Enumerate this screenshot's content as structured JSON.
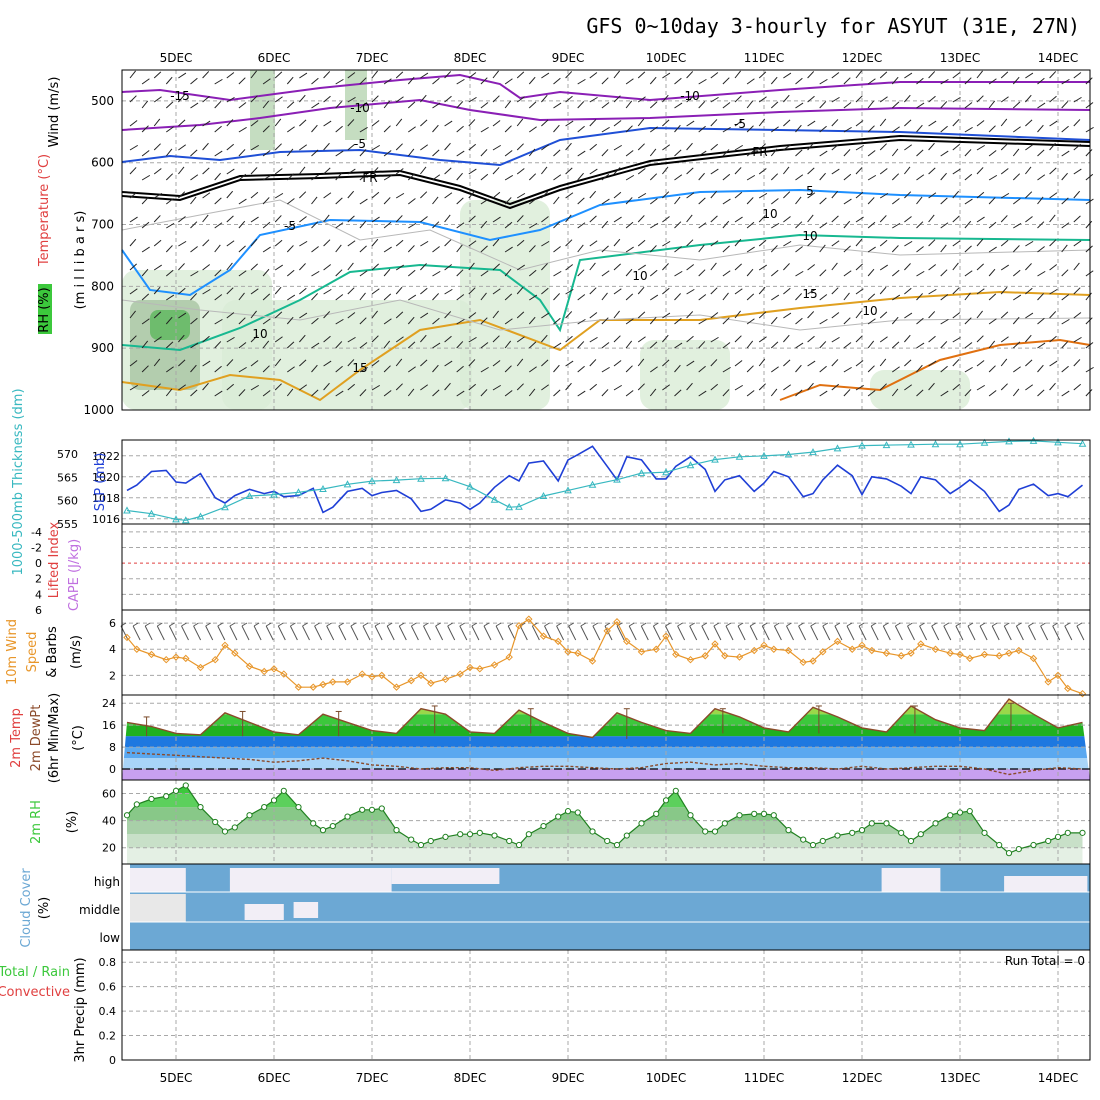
{
  "title": "GFS 0~10day 3-hourly for ASYUT (31E, 27N)",
  "days": [
    "5DEC",
    "6DEC",
    "7DEC",
    "8DEC",
    "9DEC",
    "10DEC",
    "11DEC",
    "12DEC",
    "13DEC",
    "14DEC"
  ],
  "colors": {
    "purple": "#8a1fb5",
    "blue": "#1f4fd6",
    "lightblue": "#1e90ff",
    "teal": "#17b890",
    "orange": "#e0a020",
    "darkorange": "#e07010",
    "slp": "#1f3fd6",
    "thick": "#38b8c0",
    "wind": "#e8962a",
    "rh_green": "#3cc83c",
    "cloud": "#6ca8d4"
  },
  "panels": {
    "upper": {
      "ylabel_wind": "Wind (m/s)",
      "ylabel_temp": "Temperature (°C)",
      "ylabel_rh": "RH (%)",
      "ylabel_unit": "(m i l l i b a r s)",
      "pressure_levels": [
        500,
        600,
        700,
        800,
        900,
        1000
      ],
      "isotherm_labels": [
        "-15",
        "-10",
        "-10",
        "-5",
        "-5",
        "FR",
        "FR",
        "-5",
        "5",
        "10",
        "10",
        "15",
        "15",
        "10",
        "10",
        "10"
      ]
    },
    "slp": {
      "ylabel_thick": "1000-500mb Thickness (dm)",
      "ylabel_slp": "SLP (mb)",
      "thick_ticks": [
        555,
        560,
        565,
        570
      ],
      "slp_ticks": [
        1016,
        1018,
        1020,
        1022
      ]
    },
    "li": {
      "ylabel_li": "Lifted Index",
      "ylabel_cape": "CAPE (J/kg)",
      "ticks": [
        "-4",
        "-2",
        "0",
        "2",
        "4",
        "6"
      ]
    },
    "wind10": {
      "ylabel_a": "10m Wind",
      "ylabel_b": "Speed",
      "ylabel_c": "& Barbs",
      "ylabel_unit": "(m/s)",
      "ticks": [
        2,
        4,
        6
      ]
    },
    "temp2m": {
      "ylabel_a": "2m Temp",
      "ylabel_b": "2m DewPt",
      "ylabel_c": "(6hr Min/Max)",
      "ylabel_unit": "(°C)",
      "ticks": [
        0,
        8,
        16,
        24
      ]
    },
    "rh2m": {
      "ylabel_a": "2m RH",
      "ylabel_unit": "(%)",
      "ticks": [
        20,
        40,
        60
      ]
    },
    "cloud": {
      "ylabel_a": "Cloud Cover",
      "ylabel_unit": "(%)",
      "levels": [
        "high",
        "middle",
        "low"
      ]
    },
    "precip": {
      "ylabel_a": "Total / Rain",
      "ylabel_b": "Convective",
      "ylabel_c": "3hr Precip (mm)",
      "ticks": [
        "0",
        "0.2",
        "0.4",
        "0.6",
        "0.8"
      ],
      "run_total": "Run Total = 0"
    }
  },
  "chart_data": [
    {
      "type": "line",
      "name": "Sea level pressure",
      "ylabel": "SLP (mb)",
      "ylim": [
        1015.5,
        1023.5
      ],
      "x_days": [
        4.5,
        4.6,
        4.75,
        4.9,
        5.0,
        5.1,
        5.25,
        5.4,
        5.5,
        5.6,
        5.75,
        5.9,
        6.0,
        6.1,
        6.25,
        6.4,
        6.5,
        6.6,
        6.75,
        6.9,
        7.0,
        7.1,
        7.25,
        7.4,
        7.5,
        7.6,
        7.75,
        7.9,
        8.0,
        8.1,
        8.25,
        8.4,
        8.5,
        8.6,
        8.75,
        8.9,
        9.0,
        9.1,
        9.25,
        9.4,
        9.5,
        9.6,
        9.75,
        9.9,
        10.0,
        10.1,
        10.25,
        10.4,
        10.5,
        10.6,
        10.75,
        10.9,
        11.0,
        11.1,
        11.25,
        11.4,
        11.5,
        11.6,
        11.75,
        11.9,
        12.0,
        12.1,
        12.25,
        12.4,
        12.5,
        12.6,
        12.75,
        12.9,
        13.0,
        13.1,
        13.25,
        13.4,
        13.5,
        13.6,
        13.75,
        13.9,
        14.0,
        14.1,
        14.25
      ],
      "values": [
        1018.7,
        1019.2,
        1020.5,
        1020.6,
        1019.5,
        1019.4,
        1020.3,
        1018.0,
        1017.5,
        1018.2,
        1018.8,
        1018.4,
        1018.6,
        1018.1,
        1018.2,
        1018.9,
        1016.6,
        1017.1,
        1018.6,
        1018.9,
        1018.2,
        1018.5,
        1018.7,
        1017.9,
        1016.7,
        1016.9,
        1017.8,
        1017.5,
        1016.9,
        1017.5,
        1019.0,
        1020.1,
        1019.6,
        1021.3,
        1021.5,
        1019.6,
        1021.6,
        1022.1,
        1022.9,
        1021.0,
        1019.7,
        1021.9,
        1021.6,
        1019.8,
        1019.8,
        1021.0,
        1021.9,
        1020.7,
        1018.6,
        1019.7,
        1020.1,
        1018.6,
        1019.4,
        1020.5,
        1020.0,
        1018.1,
        1018.4,
        1019.7,
        1021.1,
        1020.1,
        1018.3,
        1020.0,
        1019.8,
        1019.1,
        1018.4,
        1020.0,
        1019.7,
        1018.4,
        1019.0,
        1019.7,
        1018.6,
        1016.7,
        1017.3,
        1018.8,
        1019.3,
        1018.2,
        1018.4,
        1018.1,
        1019.2
      ]
    },
    {
      "type": "line",
      "name": "1000-500mb Thickness",
      "ylabel": "Thickness (dm)",
      "ylim": [
        555,
        573
      ],
      "x_days": [
        4.5,
        4.75,
        5.0,
        5.1,
        5.25,
        5.5,
        5.75,
        6.0,
        6.25,
        6.5,
        6.75,
        7.0,
        7.25,
        7.5,
        7.75,
        8.0,
        8.25,
        8.4,
        8.5,
        8.75,
        9.0,
        9.25,
        9.5,
        9.75,
        10.0,
        10.25,
        10.5,
        10.75,
        11.0,
        11.25,
        11.5,
        11.75,
        12.0,
        12.25,
        12.5,
        12.75,
        13.0,
        13.25,
        13.5,
        13.75,
        14.0,
        14.25
      ],
      "values": [
        557.9,
        557.2,
        556.0,
        555.8,
        556.6,
        558.6,
        561.0,
        561.3,
        561.8,
        562.5,
        563.5,
        564.2,
        564.4,
        564.7,
        564.8,
        563.0,
        560.2,
        558.6,
        558.7,
        561.0,
        562.2,
        563.4,
        564.5,
        565.9,
        566.1,
        567.6,
        568.8,
        569.4,
        569.6,
        569.9,
        570.4,
        571.2,
        571.8,
        571.9,
        572.0,
        572.1,
        572.1,
        572.4,
        572.7,
        572.8,
        572.5,
        572.2
      ]
    },
    {
      "type": "line",
      "name": "10m wind speed",
      "ylabel": "m/s",
      "ylim": [
        0.5,
        7
      ],
      "x_days": [
        4.5,
        4.6,
        4.75,
        4.9,
        5.0,
        5.1,
        5.25,
        5.4,
        5.5,
        5.6,
        5.75,
        5.9,
        6.0,
        6.1,
        6.25,
        6.4,
        6.5,
        6.6,
        6.75,
        6.9,
        7.0,
        7.1,
        7.25,
        7.4,
        7.5,
        7.6,
        7.75,
        7.9,
        8.0,
        8.1,
        8.25,
        8.4,
        8.5,
        8.6,
        8.75,
        8.9,
        9.0,
        9.1,
        9.25,
        9.4,
        9.5,
        9.6,
        9.75,
        9.9,
        10.0,
        10.1,
        10.25,
        10.4,
        10.5,
        10.6,
        10.75,
        10.9,
        11.0,
        11.1,
        11.25,
        11.4,
        11.5,
        11.6,
        11.75,
        11.9,
        12.0,
        12.1,
        12.25,
        12.4,
        12.5,
        12.6,
        12.75,
        12.9,
        13.0,
        13.1,
        13.25,
        13.4,
        13.5,
        13.6,
        13.75,
        13.9,
        14.0,
        14.1,
        14.25
      ],
      "values": [
        4.9,
        4.0,
        3.6,
        3.2,
        3.4,
        3.3,
        2.6,
        3.2,
        4.3,
        3.7,
        2.7,
        2.3,
        2.5,
        2.1,
        1.1,
        1.1,
        1.3,
        1.5,
        1.5,
        2.1,
        1.9,
        2.0,
        1.1,
        1.6,
        2.0,
        1.4,
        1.7,
        2.1,
        2.6,
        2.5,
        2.8,
        3.4,
        5.8,
        6.3,
        5.0,
        4.6,
        3.8,
        3.7,
        3.1,
        5.4,
        6.1,
        4.6,
        3.8,
        4.0,
        5.0,
        3.6,
        3.2,
        3.5,
        4.4,
        3.5,
        3.4,
        3.9,
        4.3,
        4.0,
        3.9,
        3.0,
        3.1,
        3.8,
        4.6,
        4.0,
        4.3,
        3.9,
        3.7,
        3.5,
        3.7,
        4.4,
        4.0,
        3.7,
        3.6,
        3.3,
        3.6,
        3.5,
        3.7,
        3.9,
        3.3,
        1.5,
        2.0,
        1.0,
        0.6
      ]
    },
    {
      "type": "area",
      "name": "2m temperature",
      "ylabel": "°C",
      "ylim": [
        -4,
        27
      ],
      "x_days": [
        4.5,
        4.75,
        5.0,
        5.25,
        5.5,
        5.75,
        6.0,
        6.25,
        6.5,
        6.75,
        7.0,
        7.25,
        7.5,
        7.75,
        8.0,
        8.25,
        8.5,
        8.75,
        9.0,
        9.25,
        9.5,
        9.75,
        10.0,
        10.25,
        10.5,
        10.75,
        11.0,
        11.25,
        11.5,
        11.75,
        12.0,
        12.25,
        12.5,
        12.75,
        13.0,
        13.25,
        13.5,
        13.75,
        14.0,
        14.25
      ],
      "values": [
        17,
        15.5,
        13,
        12.5,
        20.5,
        17,
        13.5,
        12.5,
        20,
        17,
        14,
        13,
        22,
        20,
        13.5,
        13,
        21.5,
        17,
        13,
        11.5,
        20.5,
        17,
        14,
        13,
        22,
        19,
        15,
        13.5,
        22.5,
        19,
        15,
        13.5,
        23,
        18,
        15,
        14,
        25.5,
        20,
        15,
        17
      ],
      "dewpoint_values": [
        6,
        5.5,
        5,
        4.5,
        4,
        3.5,
        2.5,
        3,
        4,
        3,
        1.5,
        1,
        0,
        0.5,
        0.5,
        -0.5,
        0.5,
        1,
        1,
        0.5,
        0,
        0.5,
        2,
        2.5,
        1.5,
        2,
        1,
        0.5,
        0.5,
        0,
        1,
        0,
        0.5,
        1,
        1,
        0,
        -2,
        -0.5,
        0.5,
        0
      ],
      "max_marks": [
        19,
        21,
        21,
        23,
        22,
        22,
        22,
        23,
        23,
        24,
        26
      ],
      "min_marks": [
        12,
        12,
        12,
        13,
        13,
        11,
        13,
        13,
        13,
        14,
        15
      ]
    },
    {
      "type": "area",
      "name": "2m RH",
      "ylabel": "%",
      "ylim": [
        8,
        70
      ],
      "x_days": [
        4.5,
        4.6,
        4.75,
        4.9,
        5.0,
        5.1,
        5.25,
        5.4,
        5.5,
        5.6,
        5.75,
        5.9,
        6.0,
        6.1,
        6.25,
        6.4,
        6.5,
        6.6,
        6.75,
        6.9,
        7.0,
        7.1,
        7.25,
        7.4,
        7.5,
        7.6,
        7.75,
        7.9,
        8.0,
        8.1,
        8.25,
        8.4,
        8.5,
        8.6,
        8.75,
        8.9,
        9.0,
        9.1,
        9.25,
        9.4,
        9.5,
        9.6,
        9.75,
        9.9,
        10.0,
        10.1,
        10.25,
        10.4,
        10.5,
        10.6,
        10.75,
        10.9,
        11.0,
        11.1,
        11.25,
        11.4,
        11.5,
        11.6,
        11.75,
        11.9,
        12.0,
        12.1,
        12.25,
        12.4,
        12.5,
        12.6,
        12.75,
        12.9,
        13.0,
        13.1,
        13.25,
        13.4,
        13.5,
        13.6,
        13.75,
        13.9,
        14.0,
        14.1,
        14.25
      ],
      "values": [
        44,
        52,
        56,
        58,
        62,
        66,
        50,
        39,
        32,
        35,
        44,
        50,
        55,
        62,
        50,
        38,
        33,
        36,
        43,
        48,
        48,
        49,
        33,
        26,
        22,
        25,
        28,
        30,
        30,
        31,
        29,
        25,
        22,
        30,
        36,
        43,
        47,
        46,
        32,
        25,
        22,
        29,
        38,
        45,
        55,
        62,
        44,
        32,
        32,
        38,
        44,
        45,
        45,
        44,
        33,
        26,
        22,
        25,
        29,
        31,
        33,
        38,
        38,
        31,
        25,
        30,
        38,
        44,
        46,
        47,
        31,
        22,
        16,
        19,
        22,
        25,
        28,
        31,
        31
      ]
    },
    {
      "type": "table",
      "name": "Cloud cover",
      "rows": [
        "high",
        "middle",
        "low"
      ],
      "note": "overcast blue from 5.1DEC to 14.3DEC; clear high layer 5.5-8.4DEC; partial clear 12-13.6DEC"
    },
    {
      "type": "bar",
      "name": "3hr Precip",
      "ylabel": "3hr Precip (mm)",
      "ylim": [
        0,
        0.9
      ],
      "values": [],
      "run_total": 0
    }
  ]
}
